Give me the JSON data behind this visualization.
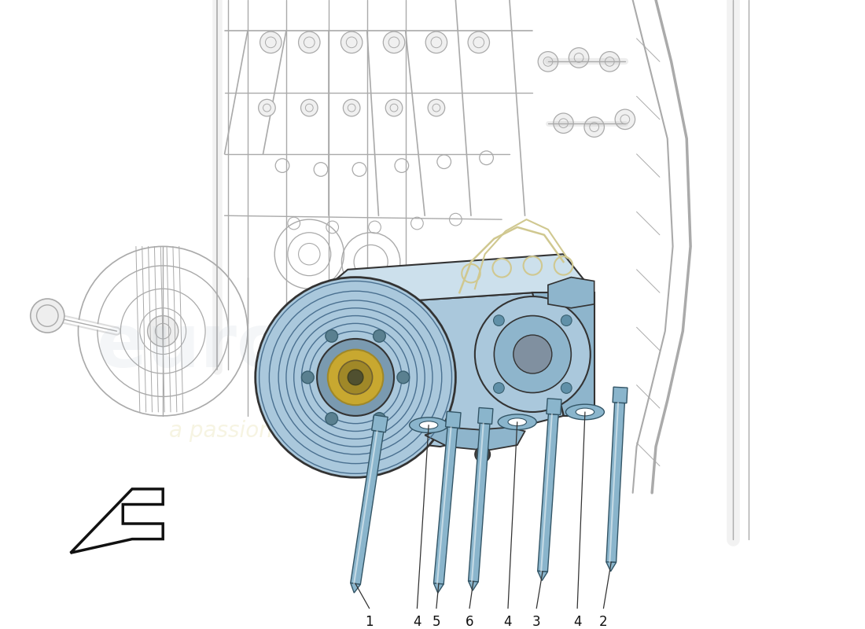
{
  "background_color": "#ffffff",
  "line_color": "#333333",
  "engine_line_color": "#aaaaaa",
  "compressor_fill": "#aac8dc",
  "compressor_fill2": "#8eb5cc",
  "compressor_dark": "#6090a8",
  "compressor_light": "#cce0ec",
  "bolt_fill": "#8ab5cc",
  "bolt_edge": "#335566",
  "hub_gold": "#c8a830",
  "hub_gold2": "#a08828",
  "watermark_color1": "#99aabb",
  "watermark_color2": "#c8b840",
  "part_labels": [
    "1",
    "4",
    "5",
    "6",
    "4",
    "3",
    "4",
    "2"
  ],
  "figsize": [
    11.0,
    8.0
  ],
  "dpi": 100
}
